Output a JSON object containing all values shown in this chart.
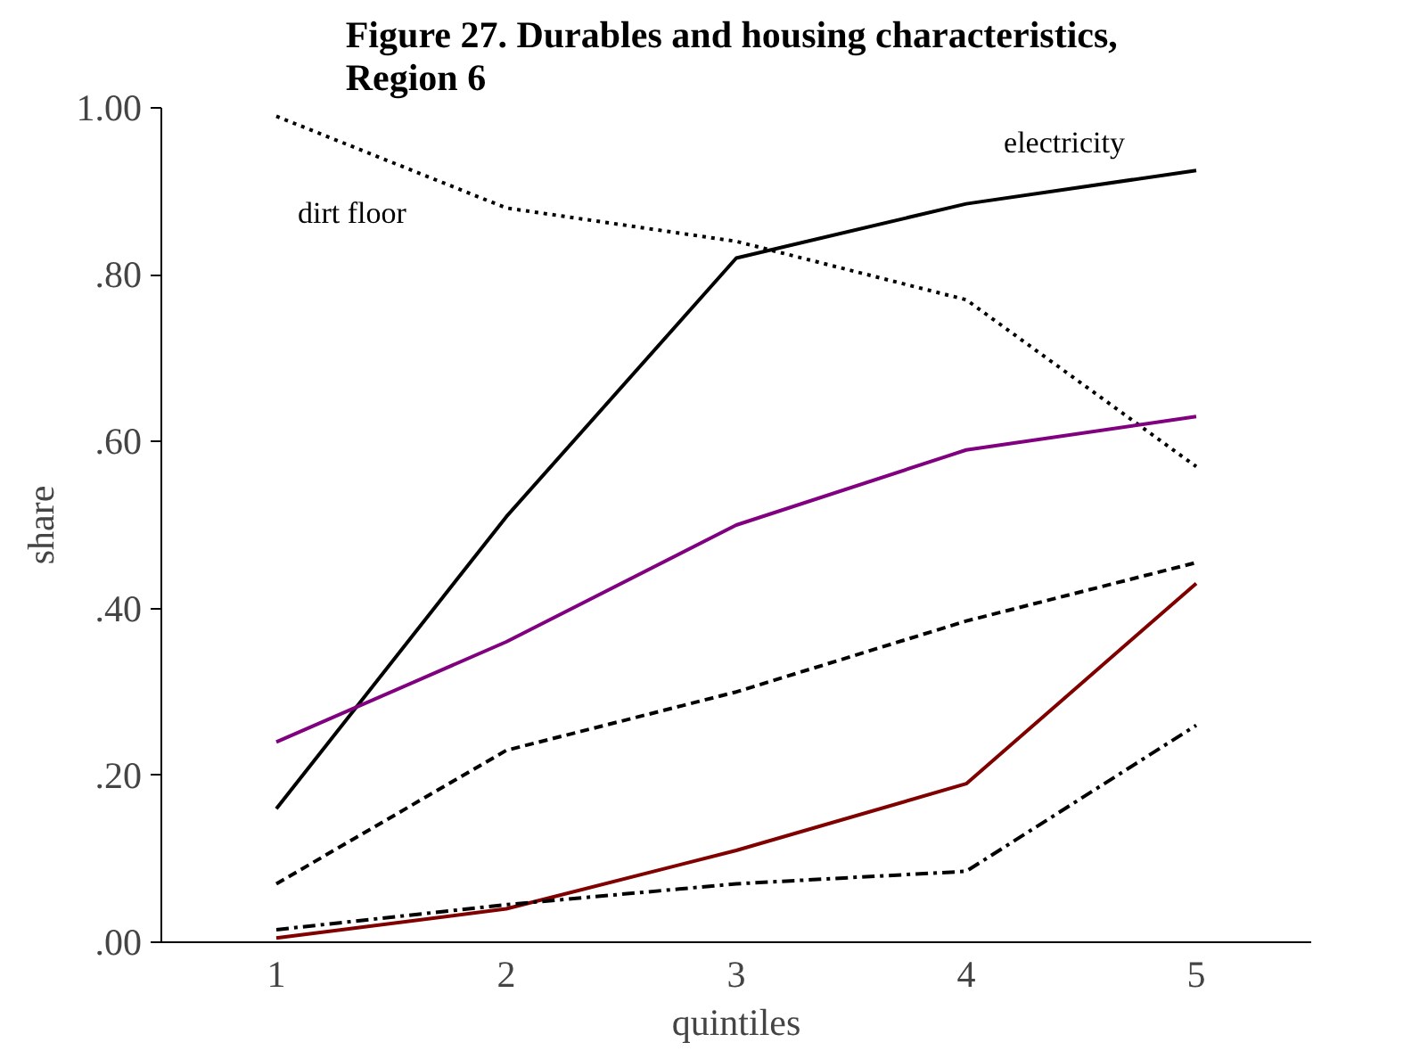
{
  "chart_data": {
    "type": "line",
    "title": "Figure 27.  Durables and housing characteristics,\nRegion 6",
    "xlabel": "quintiles",
    "ylabel": "share",
    "categories": [
      "1",
      "2",
      "3",
      "4",
      "5"
    ],
    "series": [
      {
        "name": "dirt floor",
        "color": "#000000",
        "line_style": "dotted",
        "values": [
          0.99,
          0.88,
          0.84,
          0.77,
          0.57
        ]
      },
      {
        "name": "electricity",
        "color": "#000000",
        "line_style": "solid",
        "values": [
          0.16,
          0.51,
          0.82,
          0.885,
          0.925
        ]
      },
      {
        "color": "#800080",
        "line_style": "solid",
        "values": [
          0.24,
          0.36,
          0.5,
          0.59,
          0.63
        ]
      },
      {
        "color": "#000000",
        "line_style": "dashed",
        "values": [
          0.07,
          0.23,
          0.3,
          0.385,
          0.455
        ]
      },
      {
        "color": "#800000",
        "line_style": "solid",
        "values": [
          0.005,
          0.04,
          0.11,
          0.19,
          0.43
        ]
      },
      {
        "color": "#000000",
        "line_style": "dashdot",
        "values": [
          0.015,
          0.045,
          0.07,
          0.085,
          0.26
        ]
      }
    ],
    "ylim": [
      0,
      1
    ],
    "yticks": [
      {
        "value": 0,
        "label": ".00"
      },
      {
        "value": 0.2,
        "label": ".20"
      },
      {
        "value": 0.4,
        "label": ".40"
      },
      {
        "value": 0.6,
        "label": ".60"
      },
      {
        "value": 0.8,
        "label": ".80"
      },
      {
        "value": 1,
        "label": "1.00"
      }
    ],
    "grid": false,
    "marker": "none"
  }
}
